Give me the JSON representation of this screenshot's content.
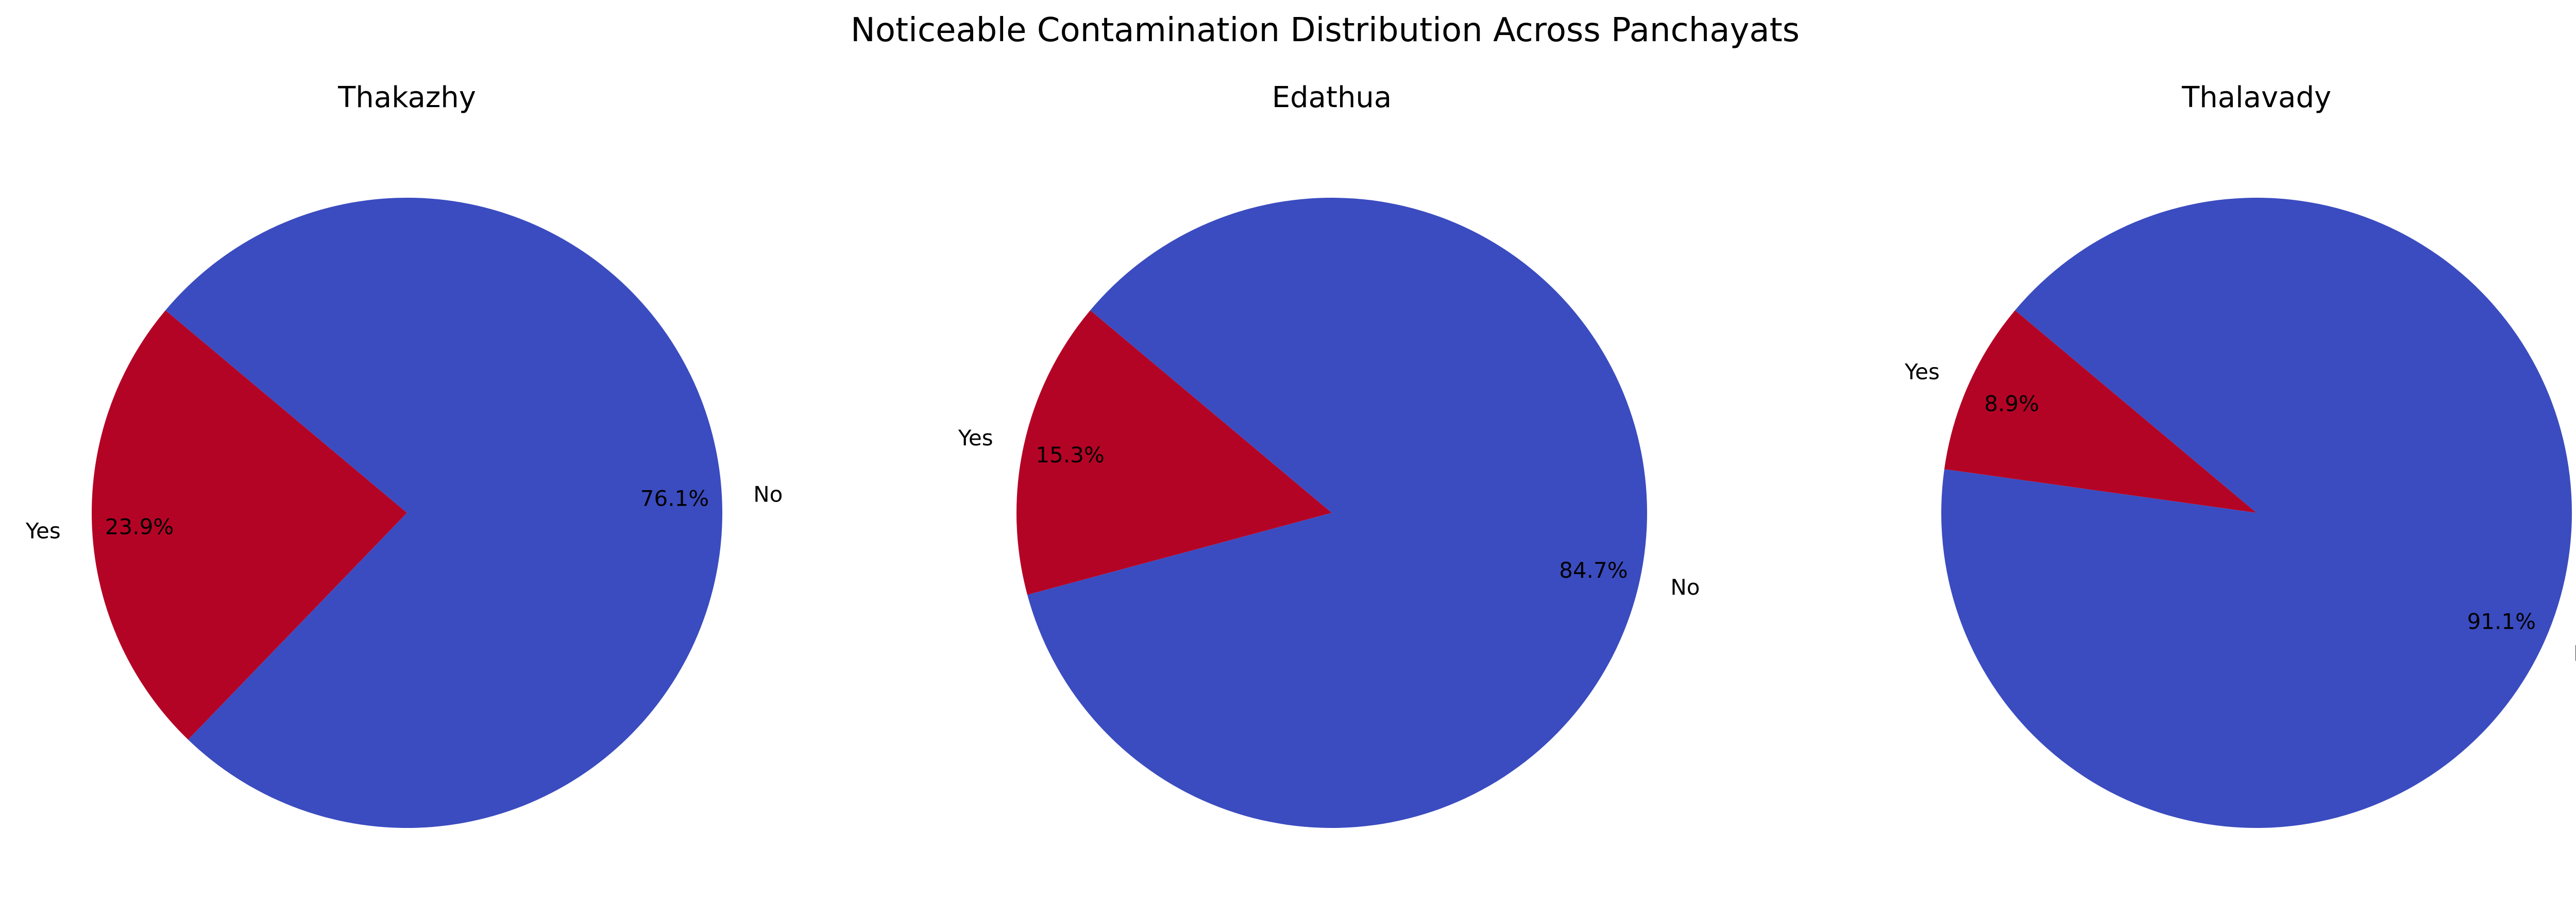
{
  "title": "Noticeable Contamination Distribution Across Panchayats",
  "colors": {
    "Yes": "#b40426",
    "No": "#3b4cc0"
  },
  "chart_data": [
    {
      "type": "pie",
      "title": "Thakazhy",
      "labels": [
        "Yes",
        "No"
      ],
      "values": [
        23.9,
        76.1
      ],
      "autopct": [
        "23.9%",
        "76.1%"
      ],
      "start_angle_deg": 140
    },
    {
      "type": "pie",
      "title": "Edathua",
      "labels": [
        "Yes",
        "No"
      ],
      "values": [
        15.3,
        84.7
      ],
      "autopct": [
        "15.3%",
        "84.7%"
      ],
      "start_angle_deg": 140
    },
    {
      "type": "pie",
      "title": "Thalavady",
      "labels": [
        "Yes",
        "No"
      ],
      "values": [
        8.9,
        91.1
      ],
      "autopct": [
        "8.9%",
        "91.1%"
      ],
      "start_angle_deg": 140
    }
  ]
}
